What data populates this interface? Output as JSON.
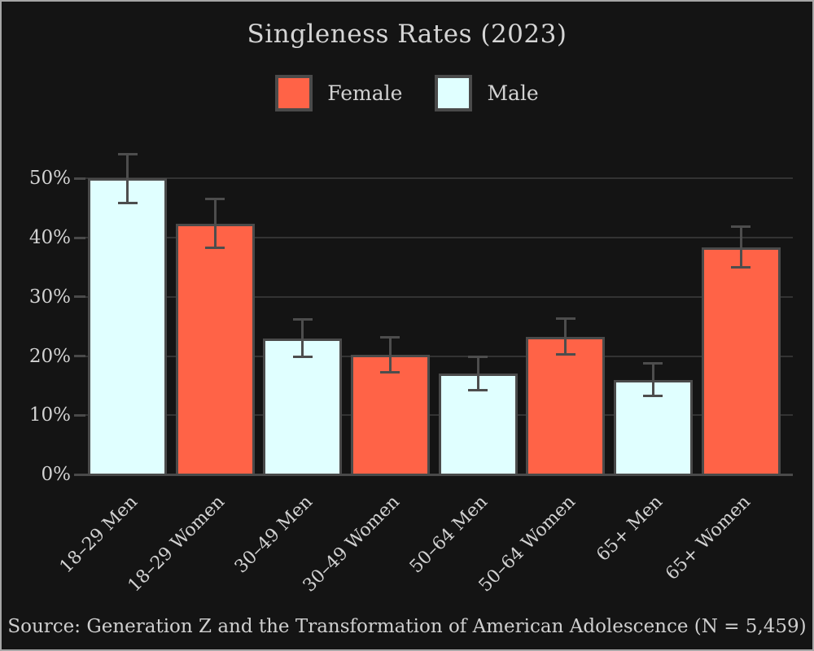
{
  "title": "Singleness Rates (2023)",
  "source": "Source: Generation Z and the Transformation of American Adolescence (N = 5,459)",
  "legend": {
    "items": [
      {
        "label": "Female",
        "color": "#ff6347"
      },
      {
        "label": "Male",
        "color": "#e0ffff"
      }
    ]
  },
  "colors": {
    "background": "#141414",
    "frame_border": "#a6a6a6",
    "text": "#d2d2d2",
    "grid": "#333333",
    "axis": "#4a4a4a",
    "bar_border": "#4a4a4a",
    "error_bar": "#4d4d4d",
    "female": "#ff6347",
    "male": "#e0ffff"
  },
  "chart_data": {
    "type": "bar",
    "title": "Singleness Rates (2023)",
    "categories": [
      "18–29 Men",
      "18–29 Women",
      "30–49 Men",
      "30–49 Women",
      "50–64 Men",
      "50–64 Women",
      "65+ Men",
      "65+ Women"
    ],
    "values": [
      50.0,
      42.4,
      23.0,
      20.2,
      17.0,
      23.3,
      16.0,
      38.4
    ],
    "error_bars": [
      4.2,
      4.2,
      3.2,
      3.0,
      2.9,
      3.1,
      2.8,
      3.5
    ],
    "bar_series": [
      "Male",
      "Female",
      "Male",
      "Female",
      "Male",
      "Female",
      "Male",
      "Female"
    ],
    "series_colors": {
      "Female": "#ff6347",
      "Male": "#e0ffff"
    },
    "xlabel": "",
    "ylabel": "",
    "ylim": [
      0,
      57
    ],
    "yticks": [
      0,
      10,
      20,
      30,
      40,
      50
    ],
    "ytick_labels": [
      "0%",
      "10%",
      "20%",
      "30%",
      "40%",
      "50%"
    ],
    "grid": true,
    "legend_position": "top-center",
    "legend_entries": [
      "Female",
      "Male"
    ]
  }
}
